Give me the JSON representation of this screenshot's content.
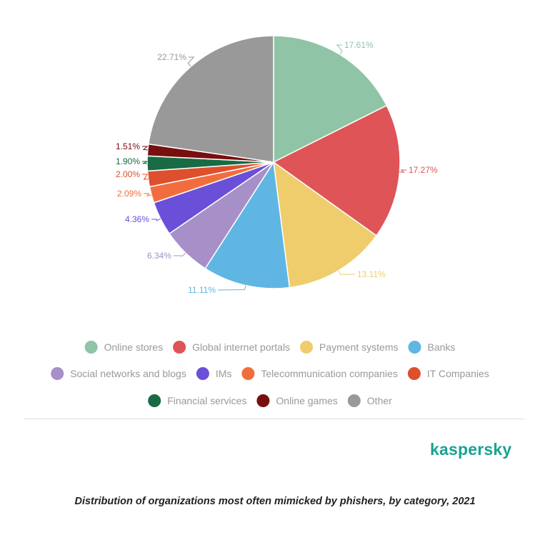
{
  "chart_data": {
    "type": "pie",
    "slices": [
      {
        "name": "Online stores",
        "value": 17.61,
        "label": "17.61%",
        "color": "#8fc4a6"
      },
      {
        "name": "Global internet portals",
        "value": 17.27,
        "label": "17.27%",
        "color": "#de5457"
      },
      {
        "name": "Payment systems",
        "value": 13.11,
        "label": "13.11%",
        "color": "#efcd6c"
      },
      {
        "name": "Banks",
        "value": 11.11,
        "label": "11.11%",
        "color": "#60b6e3"
      },
      {
        "name": "Social networks and blogs",
        "value": 6.34,
        "label": "6.34%",
        "color": "#a78fc7"
      },
      {
        "name": "IMs",
        "value": 4.36,
        "label": "4.36%",
        "color": "#6a4fd9"
      },
      {
        "name": "Telecommunication companies",
        "value": 2.09,
        "label": "2.09%",
        "color": "#f26d3d"
      },
      {
        "name": "IT Companies",
        "value": 2.0,
        "label": "2.00%",
        "color": "#de4f2d"
      },
      {
        "name": "Financial services",
        "value": 1.9,
        "label": "1.90%",
        "color": "#186b43"
      },
      {
        "name": "Online games",
        "value": 1.51,
        "label": "1.51%",
        "color": "#780f0f"
      },
      {
        "name": "Other",
        "value": 22.71,
        "label": "22.71%",
        "color": "#999999"
      }
    ],
    "legend_placement": "bottom"
  },
  "brand": {
    "name": "kaspersky",
    "color": "#1aa393"
  },
  "caption": "Distribution of organizations most often mimicked by phishers, by category, 2021"
}
